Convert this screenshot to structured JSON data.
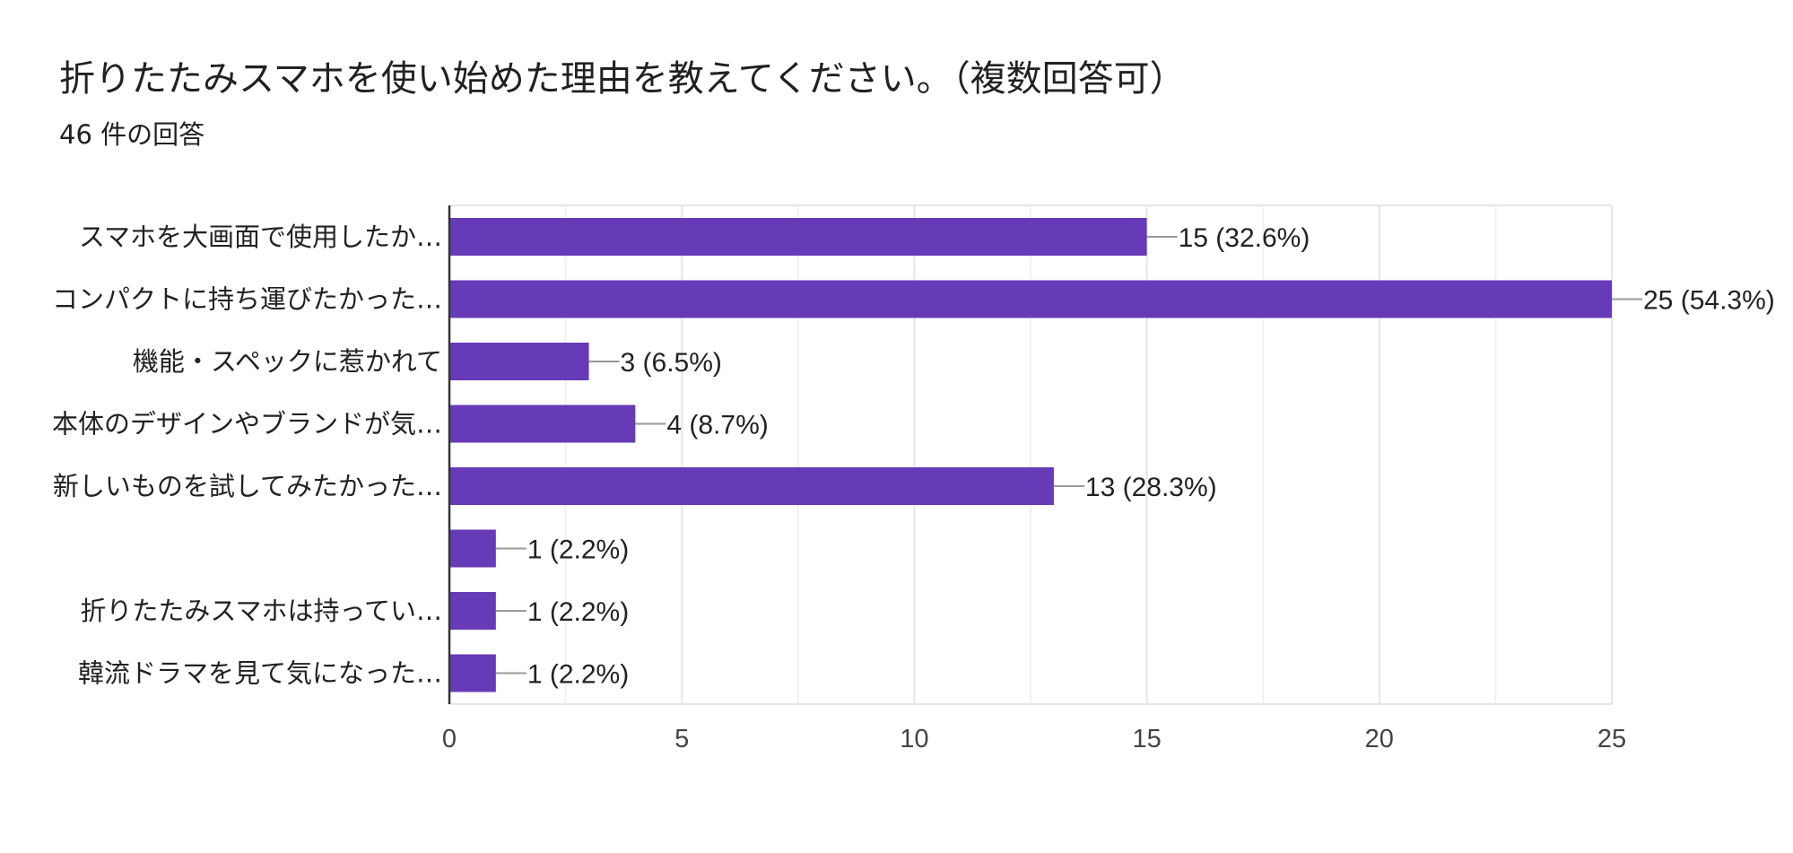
{
  "header": {
    "title": "折りたたみスマホを使い始めた理由を教えてください。（複数回答可）",
    "response_count": "46 件の回答"
  },
  "colors": {
    "bar": "#673ab7",
    "grid": "#e6e6e6",
    "axis": "#333333",
    "leader": "#999999"
  },
  "chart_data": {
    "type": "bar",
    "orientation": "horizontal",
    "title": "折りたたみスマホを使い始めた理由を教えてください。（複数回答可）",
    "subtitle": "46 件の回答",
    "categories": [
      "スマホを大画面で使用したか…",
      "コンパクトに持ち運びたかった…",
      "機能・スペックに惹かれて",
      "本体のデザインやブランドが気…",
      "新しいものを試してみたかった…",
      "",
      "折りたたみスマホは持ってい…",
      "韓流ドラマを見て気になった…"
    ],
    "values": [
      15,
      25,
      3,
      4,
      13,
      1,
      1,
      1
    ],
    "value_labels": [
      "15 (32.6%)",
      "25 (54.3%)",
      "3 (6.5%)",
      "4 (8.7%)",
      "13 (28.3%)",
      "1 (2.2%)",
      "1 (2.2%)",
      "1 (2.2%)"
    ],
    "xlim": [
      0,
      25
    ],
    "xticks": [
      0,
      5,
      10,
      15,
      20,
      25
    ],
    "grid": true,
    "legend": "none"
  }
}
